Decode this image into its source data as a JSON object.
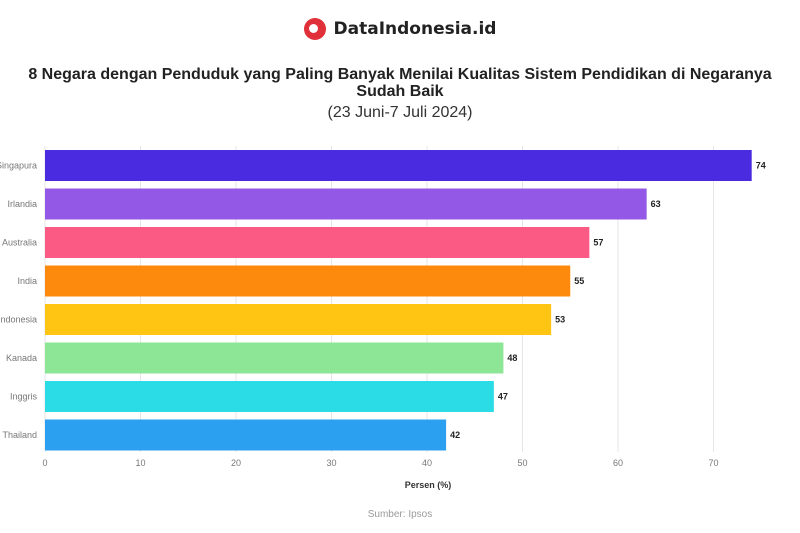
{
  "brand": {
    "name": "DataIndonesia.id",
    "logo_icon": "magnifier-logo-icon",
    "accent": "#e0303a"
  },
  "chart_data": {
    "type": "bar",
    "orientation": "horizontal",
    "title": "8 Negara dengan Penduduk yang Paling Banyak Menilai Kualitas Sistem Pendidikan di Negaranya Sudah Baik",
    "subtitle": "(23 Juni-7 Juli 2024)",
    "categories": [
      "Singapura",
      "Irlandia",
      "Australia",
      "India",
      "Indonesia",
      "Kanada",
      "Inggris",
      "Thailand"
    ],
    "values": [
      74,
      63,
      57,
      55,
      53,
      48,
      47,
      42
    ],
    "colors": [
      "#4a2be0",
      "#9359e6",
      "#fb5a84",
      "#fd8a0c",
      "#ffc512",
      "#8de596",
      "#2bdbe6",
      "#2b9ff0"
    ],
    "xlabel": "Persen (%)",
    "ylabel": "",
    "xlim": [
      0,
      75
    ],
    "xticks": [
      0,
      10,
      20,
      30,
      40,
      50,
      60,
      70
    ],
    "grid": true,
    "source": "Sumber: Ipsos"
  }
}
